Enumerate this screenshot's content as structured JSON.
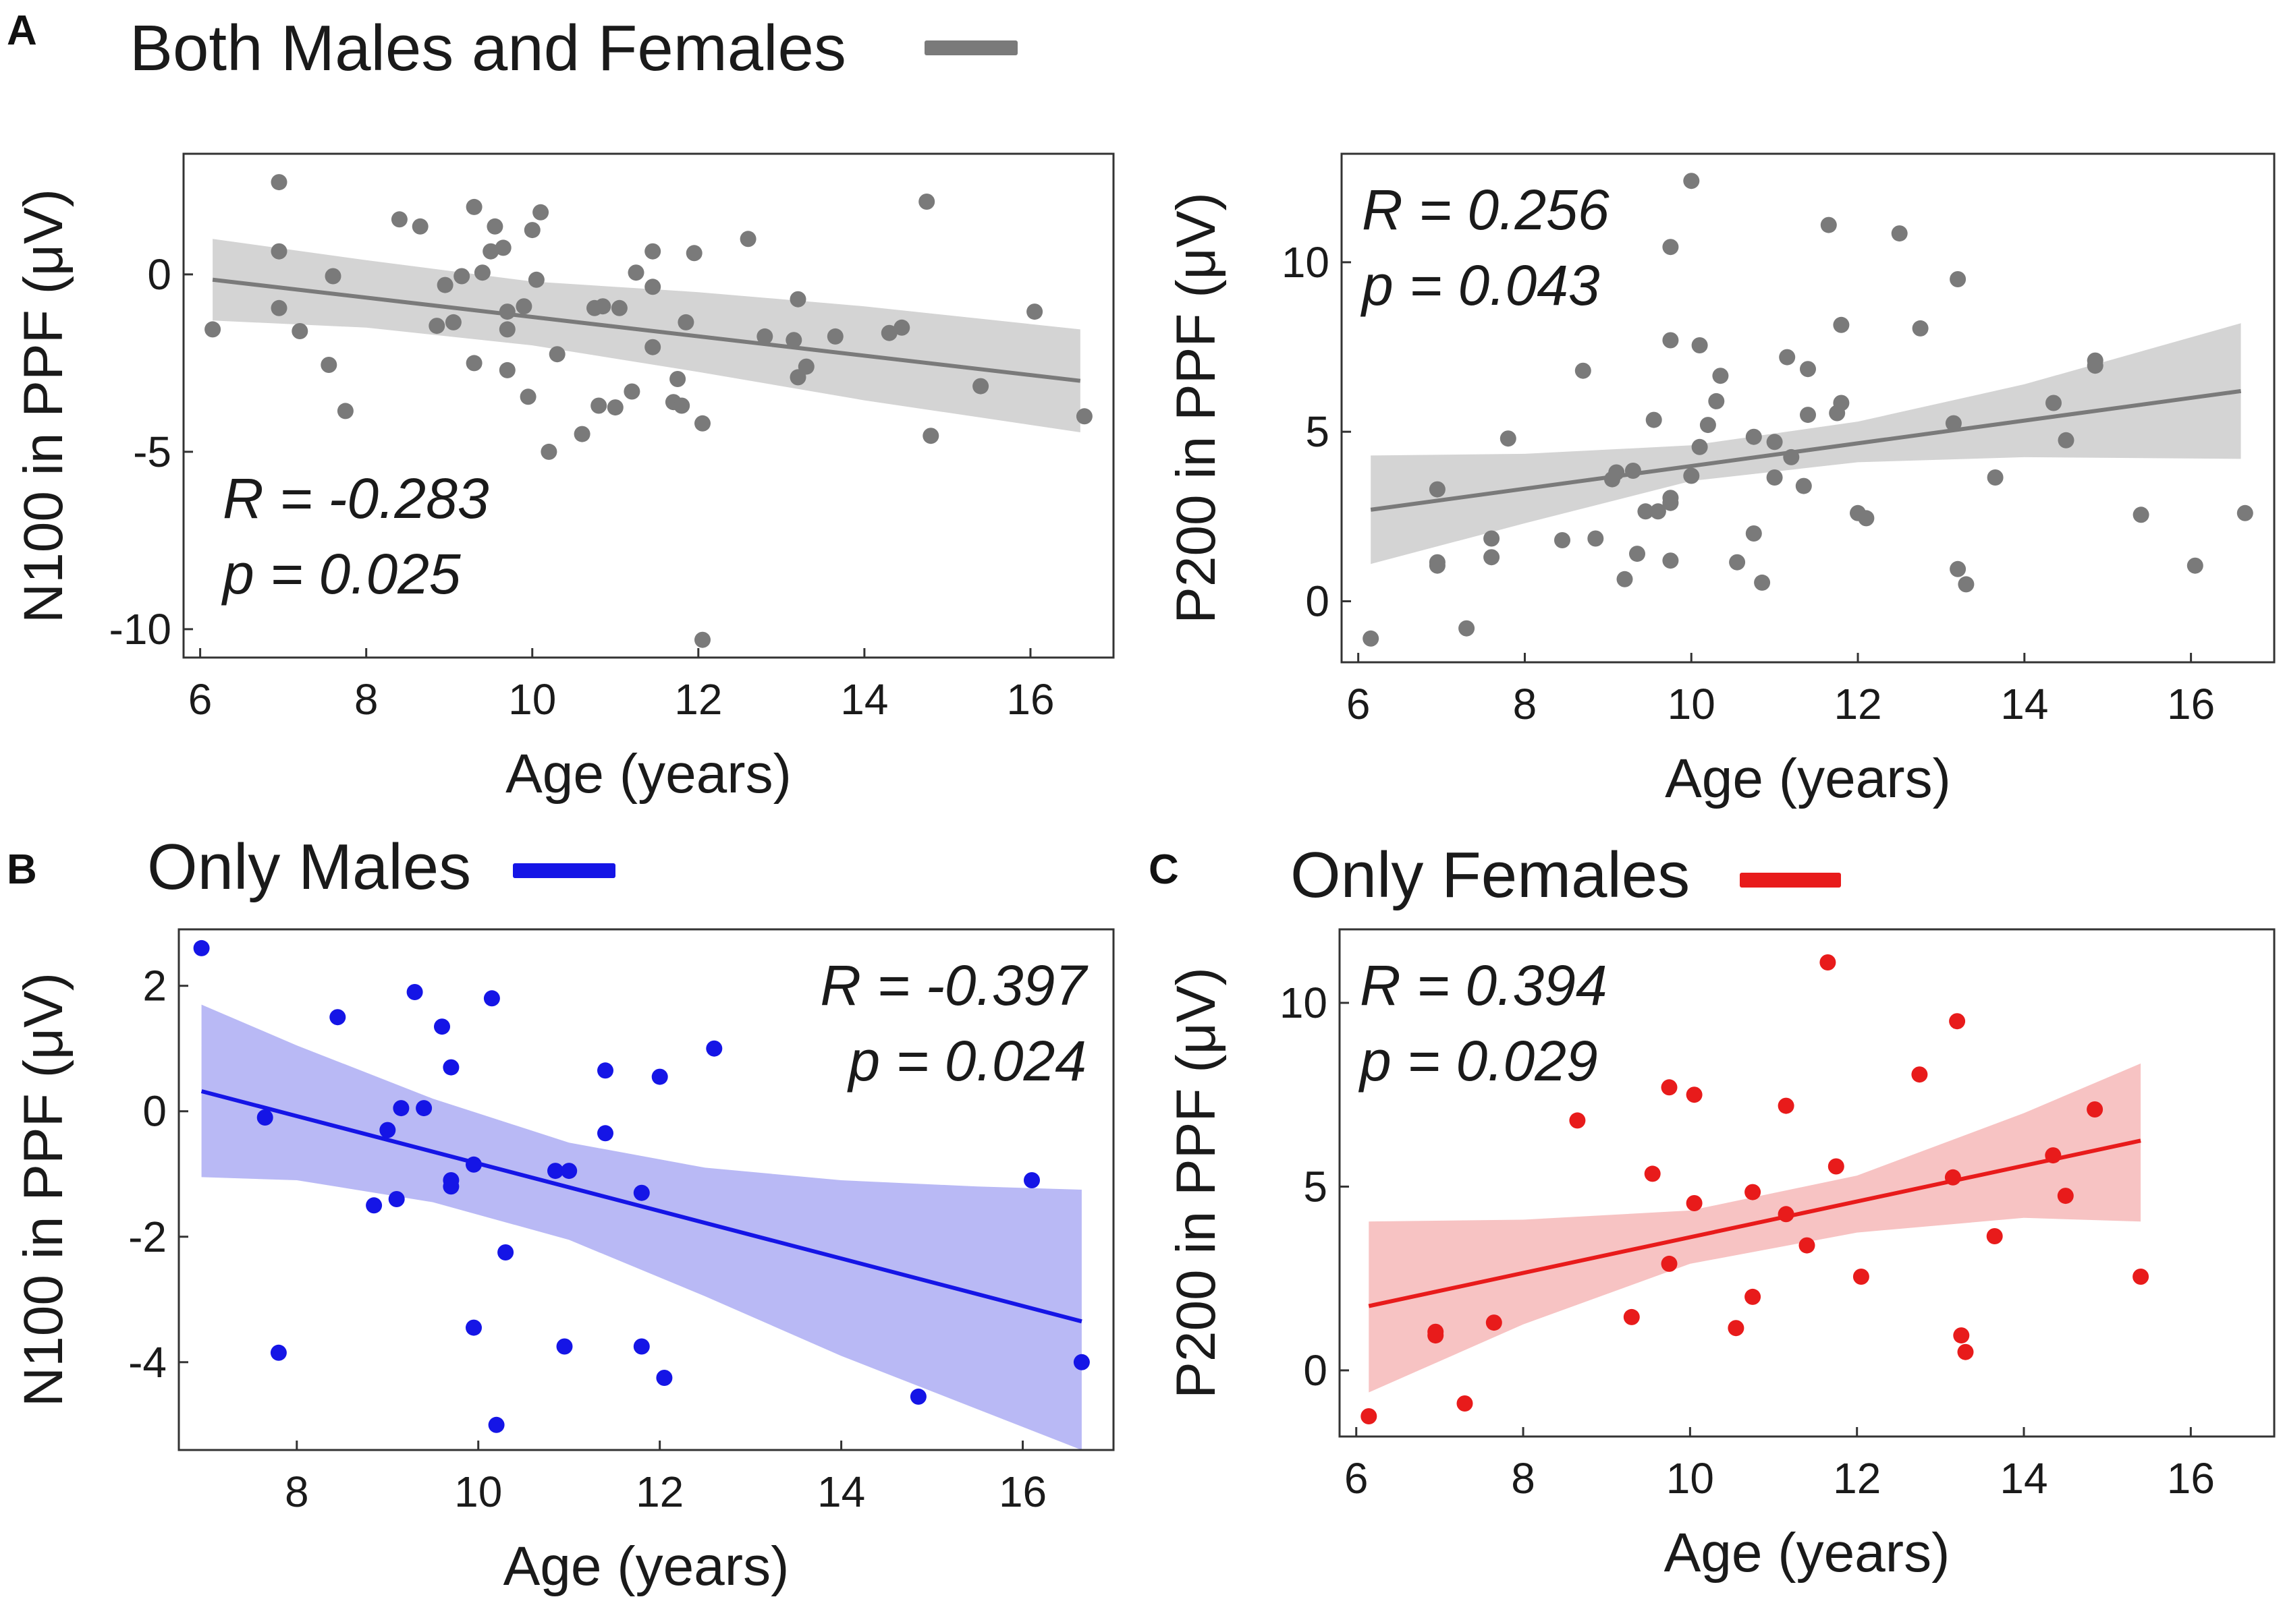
{
  "figure": {
    "colors": {
      "both": "#7a7a7a",
      "males": "#1515e6",
      "females": "#e81b1b"
    },
    "band_colors": {
      "both": "#d4d4d4",
      "males": "#b9b9f5",
      "females": "#f7c3c3"
    }
  },
  "groups": [
    {
      "letter": "A",
      "title": "Both Males and Females",
      "color": "#7a7a7a"
    },
    {
      "letter": "B",
      "title": "Only Males",
      "color": "#1515e6"
    },
    {
      "letter": "C",
      "title": "Only Females",
      "color": "#e81b1b"
    }
  ],
  "chart_data": [
    {
      "type": "scatter",
      "panel": "A-left",
      "xlabel": "Age (years)",
      "ylabel": "N100 in PPF (μV)",
      "xlim": [
        5.8,
        17.0
      ],
      "ylim": [
        -10.8,
        3.4
      ],
      "xticks": [
        6,
        8,
        10,
        12,
        14,
        16
      ],
      "yticks": [
        0,
        -5,
        -10
      ],
      "stat_r": "R = -0.283",
      "stat_p": "p = 0.025",
      "color": "#7a7a7a",
      "band_color": "#d4d4d4",
      "fit": {
        "x": [
          6.15,
          16.6
        ],
        "y": [
          -0.15,
          -3.0
        ]
      },
      "band": {
        "x": [
          6.15,
          8.0,
          10.0,
          12.0,
          14.0,
          16.6
        ],
        "upper": [
          1.0,
          0.4,
          -0.2,
          -0.5,
          -0.9,
          -1.55
        ],
        "lower": [
          -1.3,
          -1.5,
          -2.0,
          -2.75,
          -3.55,
          -4.45
        ]
      },
      "points": [
        [
          6.15,
          -1.55
        ],
        [
          6.95,
          2.6
        ],
        [
          6.95,
          0.65
        ],
        [
          6.95,
          -0.95
        ],
        [
          7.2,
          -1.6
        ],
        [
          7.55,
          -2.55
        ],
        [
          7.6,
          -0.05
        ],
        [
          7.75,
          -3.85
        ],
        [
          8.4,
          1.55
        ],
        [
          8.65,
          1.35
        ],
        [
          8.85,
          -1.45
        ],
        [
          8.95,
          -0.3
        ],
        [
          9.05,
          -1.35
        ],
        [
          9.15,
          -0.05
        ],
        [
          9.3,
          1.9
        ],
        [
          9.3,
          -2.5
        ],
        [
          9.4,
          0.05
        ],
        [
          9.5,
          0.65
        ],
        [
          9.55,
          1.35
        ],
        [
          9.65,
          0.75
        ],
        [
          9.7,
          -1.55
        ],
        [
          9.7,
          -1.05
        ],
        [
          9.7,
          -2.7
        ],
        [
          9.9,
          -0.9
        ],
        [
          9.95,
          -3.45
        ],
        [
          10.0,
          1.25
        ],
        [
          10.05,
          -0.15
        ],
        [
          10.1,
          1.75
        ],
        [
          10.2,
          -5.0
        ],
        [
          10.3,
          -2.25
        ],
        [
          10.6,
          -4.5
        ],
        [
          10.75,
          -0.95
        ],
        [
          10.8,
          -3.7
        ],
        [
          10.85,
          -0.9
        ],
        [
          11.0,
          -3.75
        ],
        [
          11.05,
          -0.95
        ],
        [
          11.2,
          -3.3
        ],
        [
          11.25,
          0.05
        ],
        [
          11.45,
          -2.05
        ],
        [
          11.45,
          0.65
        ],
        [
          11.45,
          -0.35
        ],
        [
          11.7,
          -3.6
        ],
        [
          11.75,
          -2.95
        ],
        [
          11.8,
          -3.7
        ],
        [
          11.85,
          -1.35
        ],
        [
          11.95,
          0.6
        ],
        [
          12.05,
          -4.2
        ],
        [
          12.05,
          -10.3
        ],
        [
          12.6,
          1.0
        ],
        [
          12.8,
          -1.75
        ],
        [
          13.15,
          -1.85
        ],
        [
          13.2,
          -0.7
        ],
        [
          13.2,
          -2.9
        ],
        [
          13.3,
          -2.6
        ],
        [
          13.65,
          -1.75
        ],
        [
          14.3,
          -1.65
        ],
        [
          14.45,
          -1.5
        ],
        [
          14.75,
          2.05
        ],
        [
          14.8,
          -4.55
        ],
        [
          15.4,
          -3.15
        ],
        [
          16.05,
          -1.05
        ],
        [
          16.65,
          -4.0
        ]
      ]
    },
    {
      "type": "scatter",
      "panel": "A-right",
      "xlabel": "Age (years)",
      "ylabel": "P200 in PPF (μV)",
      "xlim": [
        5.8,
        17.0
      ],
      "ylim": [
        -1.8,
        13.2
      ],
      "xticks": [
        6,
        8,
        10,
        12,
        14,
        16
      ],
      "yticks": [
        0,
        5,
        10
      ],
      "stat_r": "R = 0.256",
      "stat_p": "p = 0.043",
      "color": "#7a7a7a",
      "band_color": "#d4d4d4",
      "fit": {
        "x": [
          6.15,
          16.6
        ],
        "y": [
          2.7,
          6.2
        ]
      },
      "band": {
        "x": [
          6.15,
          8.0,
          10.0,
          12.0,
          14.0,
          16.6
        ],
        "upper": [
          4.3,
          4.35,
          4.6,
          5.3,
          6.4,
          8.2
        ],
        "lower": [
          1.1,
          2.3,
          3.55,
          4.1,
          4.25,
          4.2
        ]
      },
      "points": [
        [
          6.15,
          -1.1
        ],
        [
          6.95,
          3.3
        ],
        [
          6.95,
          1.05
        ],
        [
          6.95,
          1.15
        ],
        [
          7.3,
          -0.8
        ],
        [
          7.6,
          1.85
        ],
        [
          7.6,
          1.3
        ],
        [
          7.8,
          4.8
        ],
        [
          8.45,
          1.8
        ],
        [
          8.7,
          6.8
        ],
        [
          8.85,
          1.85
        ],
        [
          9.05,
          3.6
        ],
        [
          9.1,
          3.8
        ],
        [
          9.2,
          0.65
        ],
        [
          9.3,
          3.85
        ],
        [
          9.35,
          1.4
        ],
        [
          9.45,
          2.65
        ],
        [
          9.55,
          5.35
        ],
        [
          9.6,
          2.65
        ],
        [
          9.75,
          2.9
        ],
        [
          9.75,
          3.05
        ],
        [
          9.75,
          1.2
        ],
        [
          9.75,
          7.7
        ],
        [
          9.75,
          10.45
        ],
        [
          10.0,
          12.4
        ],
        [
          10.0,
          3.7
        ],
        [
          10.1,
          7.55
        ],
        [
          10.1,
          4.55
        ],
        [
          10.2,
          5.2
        ],
        [
          10.3,
          5.9
        ],
        [
          10.35,
          6.65
        ],
        [
          10.55,
          1.15
        ],
        [
          10.75,
          4.85
        ],
        [
          10.75,
          2.0
        ],
        [
          10.85,
          0.55
        ],
        [
          11.0,
          4.7
        ],
        [
          11.0,
          3.65
        ],
        [
          11.15,
          7.2
        ],
        [
          11.2,
          4.25
        ],
        [
          11.35,
          3.4
        ],
        [
          11.4,
          6.85
        ],
        [
          11.4,
          5.5
        ],
        [
          11.65,
          11.1
        ],
        [
          11.75,
          5.55
        ],
        [
          11.8,
          5.85
        ],
        [
          11.8,
          8.15
        ],
        [
          12.0,
          2.6
        ],
        [
          12.1,
          2.45
        ],
        [
          12.5,
          10.85
        ],
        [
          12.75,
          8.05
        ],
        [
          13.15,
          5.25
        ],
        [
          13.2,
          9.5
        ],
        [
          13.2,
          0.95
        ],
        [
          13.3,
          0.5
        ],
        [
          13.65,
          3.65
        ],
        [
          14.35,
          5.85
        ],
        [
          14.5,
          4.75
        ],
        [
          14.85,
          6.95
        ],
        [
          14.85,
          7.1
        ],
        [
          15.4,
          2.55
        ],
        [
          16.05,
          1.05
        ],
        [
          16.65,
          2.6
        ]
      ]
    },
    {
      "type": "scatter",
      "panel": "B",
      "xlabel": "Age (years)",
      "ylabel": "N100 in PPF (μV)",
      "xlim": [
        6.7,
        17.0
      ],
      "ylim": [
        -5.4,
        2.9
      ],
      "xticks": [
        8,
        10,
        12,
        14,
        16
      ],
      "yticks": [
        2,
        0,
        -2,
        -4
      ],
      "stat_r": "R = -0.397",
      "stat_p": "p = 0.024",
      "color": "#1515e6",
      "band_color": "#b9b9f5",
      "fit": {
        "x": [
          6.95,
          16.65
        ],
        "y": [
          0.32,
          -3.35
        ]
      },
      "band": {
        "x": [
          6.95,
          8.0,
          9.5,
          11.0,
          12.5,
          14.0,
          15.5,
          16.65
        ],
        "upper": [
          1.7,
          1.05,
          0.2,
          -0.5,
          -0.9,
          -1.1,
          -1.2,
          -1.25
        ],
        "lower": [
          -1.05,
          -1.1,
          -1.45,
          -2.05,
          -2.95,
          -3.9,
          -4.75,
          -5.4
        ]
      },
      "points": [
        [
          6.95,
          2.6
        ],
        [
          7.65,
          -0.1
        ],
        [
          7.8,
          -3.85
        ],
        [
          8.45,
          1.5
        ],
        [
          8.85,
          -1.5
        ],
        [
          9.0,
          -0.3
        ],
        [
          9.1,
          -1.4
        ],
        [
          9.15,
          0.05
        ],
        [
          9.3,
          1.9
        ],
        [
          9.4,
          0.05
        ],
        [
          9.6,
          1.35
        ],
        [
          9.7,
          0.7
        ],
        [
          9.7,
          -1.1
        ],
        [
          9.7,
          -1.2
        ],
        [
          9.95,
          -0.85
        ],
        [
          9.95,
          -3.45
        ],
        [
          10.15,
          1.8
        ],
        [
          10.2,
          -5.0
        ],
        [
          10.3,
          -2.25
        ],
        [
          10.85,
          -0.95
        ],
        [
          10.95,
          -3.75
        ],
        [
          11.0,
          -0.95
        ],
        [
          11.4,
          -0.35
        ],
        [
          11.4,
          0.65
        ],
        [
          11.8,
          -1.3
        ],
        [
          11.8,
          -3.75
        ],
        [
          12.0,
          0.55
        ],
        [
          12.05,
          -4.25
        ],
        [
          12.6,
          1.0
        ],
        [
          14.85,
          -4.55
        ],
        [
          16.1,
          -1.1
        ],
        [
          16.65,
          -4.0
        ]
      ]
    },
    {
      "type": "scatter",
      "panel": "C",
      "xlabel": "Age (years)",
      "ylabel": "P200 in PPF (μV)",
      "xlim": [
        5.8,
        17.0
      ],
      "ylim": [
        -1.8,
        12.0
      ],
      "xticks": [
        6,
        8,
        10,
        12,
        14,
        16
      ],
      "yticks": [
        0,
        5,
        10
      ],
      "stat_r": "R = 0.394",
      "stat_p": "p = 0.029",
      "color": "#e81b1b",
      "band_color": "#f7c3c3",
      "fit": {
        "x": [
          6.15,
          15.4
        ],
        "y": [
          1.75,
          6.25
        ]
      },
      "band": {
        "x": [
          6.15,
          8.0,
          10.0,
          12.0,
          14.0,
          15.4
        ],
        "upper": [
          4.05,
          4.1,
          4.35,
          5.3,
          7.0,
          8.35
        ],
        "lower": [
          -0.6,
          1.25,
          2.9,
          3.75,
          4.15,
          4.05
        ]
      },
      "points": [
        [
          6.15,
          -1.25
        ],
        [
          6.95,
          1.05
        ],
        [
          6.95,
          0.95
        ],
        [
          7.3,
          -0.9
        ],
        [
          7.65,
          1.3
        ],
        [
          8.65,
          6.8
        ],
        [
          9.3,
          1.45
        ],
        [
          9.55,
          5.35
        ],
        [
          9.75,
          7.7
        ],
        [
          9.75,
          2.9
        ],
        [
          10.05,
          7.5
        ],
        [
          10.05,
          4.55
        ],
        [
          10.55,
          1.15
        ],
        [
          10.75,
          4.85
        ],
        [
          10.75,
          2.0
        ],
        [
          11.15,
          7.2
        ],
        [
          11.15,
          4.25
        ],
        [
          11.4,
          3.4
        ],
        [
          11.65,
          11.1
        ],
        [
          11.75,
          5.55
        ],
        [
          12.05,
          2.55
        ],
        [
          12.75,
          8.05
        ],
        [
          13.15,
          5.25
        ],
        [
          13.2,
          9.5
        ],
        [
          13.25,
          0.95
        ],
        [
          13.3,
          0.5
        ],
        [
          13.65,
          3.65
        ],
        [
          14.35,
          5.85
        ],
        [
          14.5,
          4.75
        ],
        [
          14.85,
          7.1
        ],
        [
          15.4,
          2.55
        ]
      ]
    }
  ]
}
